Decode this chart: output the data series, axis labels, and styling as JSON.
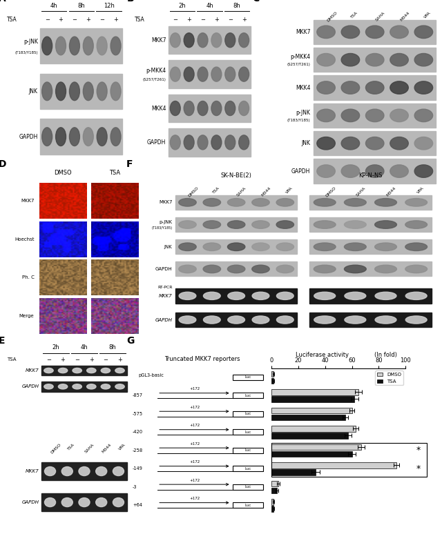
{
  "fig_width": 6.4,
  "fig_height": 7.74,
  "bg_color": "#ffffff",
  "panel_A": {
    "headers": [
      "4h",
      "8h",
      "12h"
    ],
    "lanes": [
      "−",
      "+",
      "−",
      "+",
      "−",
      "+"
    ],
    "bands": [
      [
        "p-JNK",
        "(T183/Y185)"
      ],
      [
        "JNK",
        null
      ],
      [
        "GAPDH",
        null
      ]
    ],
    "n_lanes": 6
  },
  "panel_B": {
    "headers": [
      "2h",
      "4h",
      "8h"
    ],
    "lanes": [
      "−",
      "+",
      "−",
      "+",
      "−",
      "+"
    ],
    "bands": [
      [
        "MKK7",
        null
      ],
      [
        "p-MKK4",
        "(S257/T261)"
      ],
      [
        "MKK4",
        null
      ],
      [
        "GAPDH",
        null
      ]
    ],
    "n_lanes": 6
  },
  "panel_C": {
    "conditions": [
      "DMSO",
      "TSA",
      "SAHA",
      "M344",
      "VPA"
    ],
    "bands": [
      [
        "MKK7",
        null
      ],
      [
        "p-MKK4",
        "(S257/T261)"
      ],
      [
        "MKK4",
        null
      ],
      [
        "p-JNK",
        "(T183/Y185)"
      ],
      [
        "JNK",
        null
      ],
      [
        "GAPDH",
        null
      ]
    ],
    "n_lanes": 5
  },
  "panel_D": {
    "col_labels": [
      "DMSO",
      "TSA"
    ],
    "row_labels": [
      "MKK7",
      "Hoechst",
      "Ph. C",
      "Merge"
    ],
    "dmso_colors": [
      "#cc3300",
      "#1111cc",
      "#887744",
      "#cc9988"
    ],
    "tsa_colors": [
      "#991100",
      "#0000aa",
      "#776633",
      "#998877"
    ]
  },
  "panel_E": {
    "top_headers": [
      "2h",
      "4h",
      "8h"
    ],
    "top_lanes": [
      "−",
      "+",
      "−",
      "+",
      "−",
      "+"
    ],
    "bands_top": [
      [
        "MKK7",
        null
      ],
      [
        "GAPDH",
        null
      ]
    ],
    "bot_conditions": [
      "DMSO",
      "TSA",
      "SAHA",
      "M344",
      "VPA"
    ],
    "bands_bot": [
      [
        "MKK7",
        null
      ],
      [
        "GAPDH",
        null
      ]
    ]
  },
  "panel_F": {
    "g1_label": "SK-N-BE(2)",
    "g2_label": "KP-N-NS",
    "g1_conds": [
      "DMSO",
      "TSA",
      "SAHA",
      "M344",
      "VPA"
    ],
    "g2_conds": [
      "DMSO",
      "SAHA",
      "M344",
      "VPA"
    ],
    "wb_bands": [
      [
        "MKK7",
        null
      ],
      [
        "p-JNK",
        "(T183/Y185)"
      ],
      [
        "JNK",
        null
      ],
      [
        "GAPDH",
        null
      ]
    ],
    "pcr_bands": [
      [
        "MKK7",
        null
      ],
      [
        "GAPDH",
        null
      ]
    ]
  },
  "panel_G": {
    "reporters": [
      "pGL3-basic",
      "-857",
      "-575",
      "-420",
      "-258",
      "-149",
      "-3",
      "+64"
    ],
    "dmso_values": [
      1.5,
      65,
      60,
      63,
      67,
      93,
      5,
      1.5
    ],
    "tsa_values": [
      1.5,
      62,
      55,
      57,
      60,
      33,
      4,
      1.5
    ],
    "dmso_errors": [
      0.5,
      2.5,
      2,
      2,
      2.5,
      2,
      1,
      0.5
    ],
    "tsa_errors": [
      0.5,
      3,
      2,
      2.5,
      3,
      3,
      1,
      0.5
    ],
    "x_max": 100,
    "x_ticks": [
      0,
      20,
      40,
      60,
      80,
      100
    ],
    "bar_color_dmso": "#d0d0d0",
    "bar_color_tsa": "#111111"
  }
}
